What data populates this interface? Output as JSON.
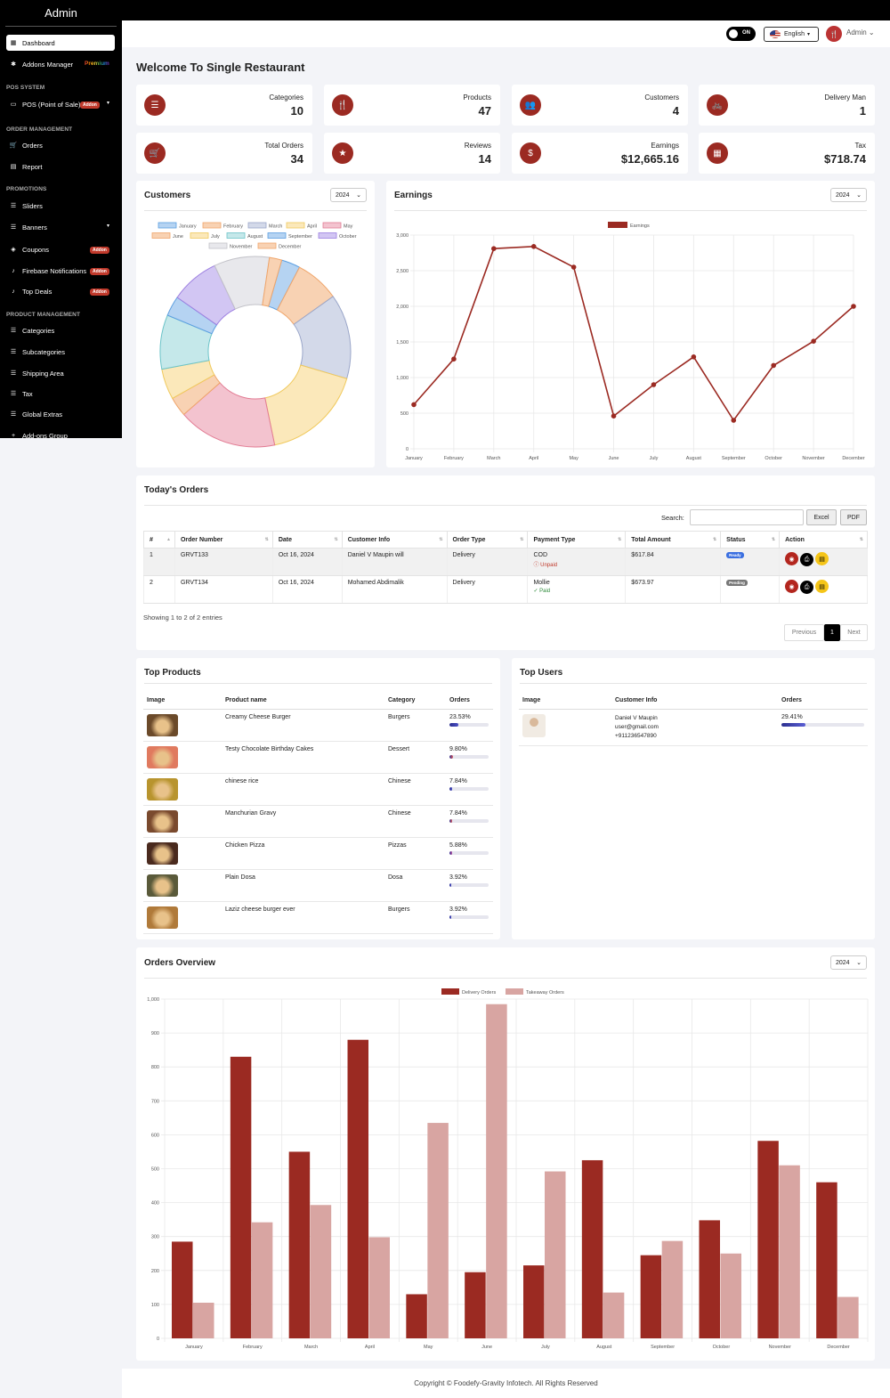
{
  "sidebar": {
    "brand": "Admin",
    "items": [
      {
        "label": "Dashboard",
        "icon": "dashboard-icon",
        "glyph": "▦"
      },
      {
        "label": "Addons Manager",
        "icon": "puzzle-icon",
        "glyph": "✱",
        "badge": "Premium"
      },
      {
        "section": "POS SYSTEM"
      },
      {
        "label": "POS (Point of Sale)",
        "icon": "pos-icon",
        "glyph": "▭",
        "badge": "Addon",
        "caret": true
      },
      {
        "section": "ORDER MANAGEMENT"
      },
      {
        "label": "Orders",
        "icon": "cart-icon",
        "glyph": "🛒"
      },
      {
        "label": "Report",
        "icon": "report-icon",
        "glyph": "▤"
      },
      {
        "section": "PROMOTIONS"
      },
      {
        "label": "Sliders",
        "icon": "sliders-icon",
        "glyph": "☰"
      },
      {
        "label": "Banners",
        "icon": "banners-icon",
        "glyph": "☰",
        "caret": true
      },
      {
        "label": "Coupons",
        "icon": "coupon-icon",
        "glyph": "◈",
        "badge": "Addon"
      },
      {
        "label": "Firebase Notifications",
        "icon": "bell-icon",
        "glyph": "♪",
        "badge": "Addon"
      },
      {
        "label": "Top Deals",
        "icon": "bell-icon",
        "glyph": "♪",
        "badge": "Addon"
      },
      {
        "section": "PRODUCT MANAGEMENT"
      },
      {
        "label": "Categories",
        "icon": "list-icon",
        "glyph": "☰"
      },
      {
        "label": "Subcategories",
        "icon": "list-icon",
        "glyph": "☰"
      },
      {
        "label": "Shipping Area",
        "icon": "list-icon",
        "glyph": "☰"
      },
      {
        "label": "Tax",
        "icon": "list-icon",
        "glyph": "☰"
      },
      {
        "label": "Global Extras",
        "icon": "list-icon",
        "glyph": "☰"
      },
      {
        "label": "Add-ons Group",
        "icon": "plus-icon",
        "glyph": "+"
      }
    ]
  },
  "header": {
    "toggle_label": "ON",
    "language": "English",
    "user": "Admin"
  },
  "welcome": "Welcome To Single Restaurant",
  "stats": [
    {
      "label": "Categories",
      "value": "10",
      "icon": "list-icon",
      "glyph": "☰"
    },
    {
      "label": "Products",
      "value": "47",
      "icon": "utensils-icon",
      "glyph": "🍴"
    },
    {
      "label": "Customers",
      "value": "4",
      "icon": "users-icon",
      "glyph": "👥"
    },
    {
      "label": "Delivery Man",
      "value": "1",
      "icon": "bike-icon",
      "glyph": "🚲"
    },
    {
      "label": "Total Orders",
      "value": "34",
      "icon": "cart-icon",
      "glyph": "🛒"
    },
    {
      "label": "Reviews",
      "value": "14",
      "icon": "star-icon",
      "glyph": "★"
    },
    {
      "label": "Earnings",
      "value": "$12,665.16",
      "icon": "dollar-icon",
      "glyph": "$"
    },
    {
      "label": "Tax",
      "value": "$718.74",
      "icon": "calculator-icon",
      "glyph": "▦"
    }
  ],
  "customers_panel": {
    "title": "Customers",
    "year": "2024"
  },
  "earnings_panel": {
    "title": "Earnings",
    "year": "2024"
  },
  "orders_overview_panel": {
    "title": "Orders Overview",
    "year": "2024"
  },
  "chart_data": [
    {
      "type": "pie",
      "categories": [
        "January",
        "February",
        "March",
        "April",
        "May",
        "June",
        "July",
        "August",
        "September",
        "October",
        "November",
        "December"
      ],
      "values": [
        3.2,
        7.5,
        14.4,
        17.2,
        16.8,
        3.3,
        5.2,
        9.2,
        3.4,
        8.3,
        9.4,
        2.1
      ],
      "colors": [
        "#b5d3f2",
        "#f8d2b3",
        "#d3d9e9",
        "#fbe8ba",
        "#f3c3cf",
        "#f8d2b3",
        "#fbe8ba",
        "#c5e8ea",
        "#b5d3f2",
        "#d2c6f3",
        "#e8e8ec",
        "#f8d2b3"
      ],
      "borders": [
        "#5b9ee0",
        "#f0a56a",
        "#9aa6c9",
        "#f0c95c",
        "#e27b93",
        "#f0a56a",
        "#f0c95c",
        "#6bc3c8",
        "#5b9ee0",
        "#9c7ee0",
        "#c2c2c8",
        "#f0a56a"
      ],
      "legend": "top"
    },
    {
      "type": "line",
      "x": [
        "January",
        "February",
        "March",
        "April",
        "May",
        "June",
        "July",
        "August",
        "September",
        "October",
        "November",
        "December"
      ],
      "series": [
        {
          "name": "Earnings",
          "values": [
            620,
            1260,
            2810,
            2840,
            2550,
            460,
            900,
            1290,
            400,
            1170,
            1510,
            2000
          ]
        }
      ],
      "ylim": [
        0,
        3000
      ],
      "yticks": [
        "0",
        "500",
        "1,000",
        "1,500",
        "2,000",
        "2,500",
        "3,000"
      ],
      "color": "#9b2a22",
      "grid": true
    },
    {
      "type": "bar",
      "categories": [
        "January",
        "February",
        "March",
        "April",
        "May",
        "June",
        "July",
        "August",
        "September",
        "October",
        "November",
        "December"
      ],
      "series": [
        {
          "name": "Delivery Orders",
          "values": [
            285,
            830,
            550,
            880,
            130,
            195,
            215,
            525,
            245,
            348,
            582,
            460
          ],
          "color": "#9b2a22"
        },
        {
          "name": "Takeaway Orders",
          "values": [
            105,
            342,
            393,
            298,
            635,
            985,
            492,
            135,
            287,
            250,
            510,
            122
          ],
          "color": "#d8a5a2"
        }
      ],
      "ylim": [
        0,
        1000
      ],
      "yticks": [
        "0",
        "100",
        "200",
        "300",
        "400",
        "500",
        "600",
        "700",
        "800",
        "900",
        "1,000"
      ],
      "grid": true
    }
  ],
  "todays_orders": {
    "title": "Today's Orders",
    "search_label": "Search:",
    "buttons": [
      "Excel",
      "PDF"
    ],
    "columns": [
      "#",
      "Order Number",
      "Date",
      "Customer Info",
      "Order Type",
      "Payment Type",
      "Total Amount",
      "Status",
      "Action"
    ],
    "rows": [
      {
        "num": "1",
        "order": "GRVT133",
        "date": "Oct 16, 2024",
        "customer": "Daniel V Maupin will",
        "type": "Delivery",
        "payment": "COD",
        "pay_status": "ⓘ Unpaid",
        "amount": "$617.84",
        "status": "Ready"
      },
      {
        "num": "2",
        "order": "GRVT134",
        "date": "Oct 16, 2024",
        "customer": "Mohamed Abdimalik",
        "type": "Delivery",
        "payment": "Mollie",
        "pay_status": "✓ Paid",
        "amount": "$673.97",
        "status": "Pending"
      }
    ],
    "info": "Showing 1 to 2 of 2 entries",
    "pager": [
      "Previous",
      "1",
      "Next"
    ]
  },
  "top_products": {
    "title": "Top Products",
    "columns": [
      "Image",
      "Product name",
      "Category",
      "Orders"
    ],
    "rows": [
      {
        "name": "Creamy Cheese Burger",
        "category": "Burgers",
        "pct": "23.53%",
        "frac": 0.2353,
        "thumb": "#6b4a2a"
      },
      {
        "name": "Testy Chocolate Birthday Cakes",
        "category": "Dessert",
        "pct": "9.80%",
        "frac": 0.098,
        "thumb": "#e07a5f"
      },
      {
        "name": "chinese rice",
        "category": "Chinese",
        "pct": "7.84%",
        "frac": 0.0784,
        "thumb": "#b8942e"
      },
      {
        "name": "Manchurian Gravy",
        "category": "Chinese",
        "pct": "7.84%",
        "frac": 0.0784,
        "thumb": "#7a4a2e"
      },
      {
        "name": "Chicken Pizza",
        "category": "Pizzas",
        "pct": "5.88%",
        "frac": 0.0588,
        "thumb": "#4a2a1e"
      },
      {
        "name": "Plain Dosa",
        "category": "Dosa",
        "pct": "3.92%",
        "frac": 0.0392,
        "thumb": "#5a5a3a"
      },
      {
        "name": "Laziz cheese burger ever",
        "category": "Burgers",
        "pct": "3.92%",
        "frac": 0.0392,
        "thumb": "#b07a3a"
      }
    ]
  },
  "top_users": {
    "title": "Top Users",
    "columns": [
      "Image",
      "Customer Info",
      "Orders"
    ],
    "rows": [
      {
        "name": "Daniel V Maupin",
        "email": "user@gmail.com",
        "phone": "+911236547890",
        "pct": "29.41%",
        "frac": 0.2941
      }
    ]
  },
  "footer": "Copyright © Foodefy-Gravity Infotech. All Rights Reserved"
}
